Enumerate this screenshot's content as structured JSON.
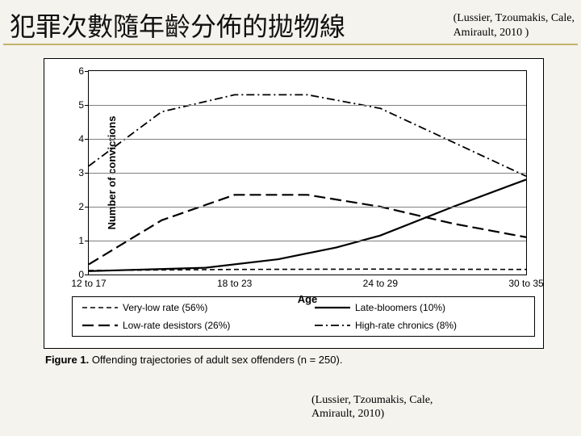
{
  "header": {
    "title": "犯罪次數隨年齡分佈的拋物線",
    "citation_top_line1": "(Lussier, Tzoumakis, Cale,",
    "citation_top_line2": "Amirault, 2010 )"
  },
  "chart": {
    "type": "line",
    "ylabel": "Number of convictions",
    "xlabel": "Age",
    "xlim": [
      0,
      3
    ],
    "ylim": [
      0,
      6
    ],
    "yticks": [
      0,
      1,
      2,
      3,
      4,
      5,
      6
    ],
    "xticks": [
      {
        "pos": 0,
        "label": "12 to 17"
      },
      {
        "pos": 1,
        "label": "18 to 23"
      },
      {
        "pos": 2,
        "label": "24 to 29"
      },
      {
        "pos": 3,
        "label": "30 to 35"
      }
    ],
    "grid_color": "#808080",
    "background_color": "#ffffff",
    "series": {
      "very_low": {
        "label": "Very-low rate (56%)",
        "color": "#000000",
        "dash": "6,4",
        "width": 1.6,
        "points": [
          [
            0,
            0.12
          ],
          [
            1,
            0.15
          ],
          [
            2,
            0.16
          ],
          [
            3,
            0.15
          ]
        ]
      },
      "low_desist": {
        "label": "Low-rate desistors (26%)",
        "color": "#000000",
        "dash": "14,6",
        "width": 2.2,
        "points": [
          [
            0,
            0.3
          ],
          [
            0.5,
            1.6
          ],
          [
            1,
            2.35
          ],
          [
            1.5,
            2.35
          ],
          [
            2,
            2.0
          ],
          [
            2.5,
            1.5
          ],
          [
            3,
            1.1
          ]
        ]
      },
      "late_bloom": {
        "label": "Late-bloomers (10%)",
        "color": "#000000",
        "dash": "",
        "width": 2.2,
        "points": [
          [
            0,
            0.1
          ],
          [
            0.8,
            0.2
          ],
          [
            1.3,
            0.45
          ],
          [
            1.7,
            0.8
          ],
          [
            2,
            1.15
          ],
          [
            2.5,
            2.0
          ],
          [
            3,
            2.8
          ]
        ]
      },
      "high_chron": {
        "label": "High-rate chronics (8%)",
        "color": "#000000",
        "dash": "10,4,2,4",
        "width": 1.8,
        "points": [
          [
            0,
            3.2
          ],
          [
            0.5,
            4.8
          ],
          [
            1,
            5.3
          ],
          [
            1.5,
            5.3
          ],
          [
            2,
            4.9
          ],
          [
            2.5,
            3.9
          ],
          [
            3,
            2.9
          ]
        ]
      }
    }
  },
  "legend": {
    "items": [
      {
        "key": "very_low"
      },
      {
        "key": "late_bloom"
      },
      {
        "key": "low_desist"
      },
      {
        "key": "high_chron"
      }
    ]
  },
  "caption": {
    "label": "Figure 1.",
    "text": "Offending trajectories of adult sex offenders (n = 250)."
  },
  "citation_bottom": {
    "line1": "(Lussier, Tzoumakis, Cale,",
    "line2": "Amirault, 2010)"
  }
}
